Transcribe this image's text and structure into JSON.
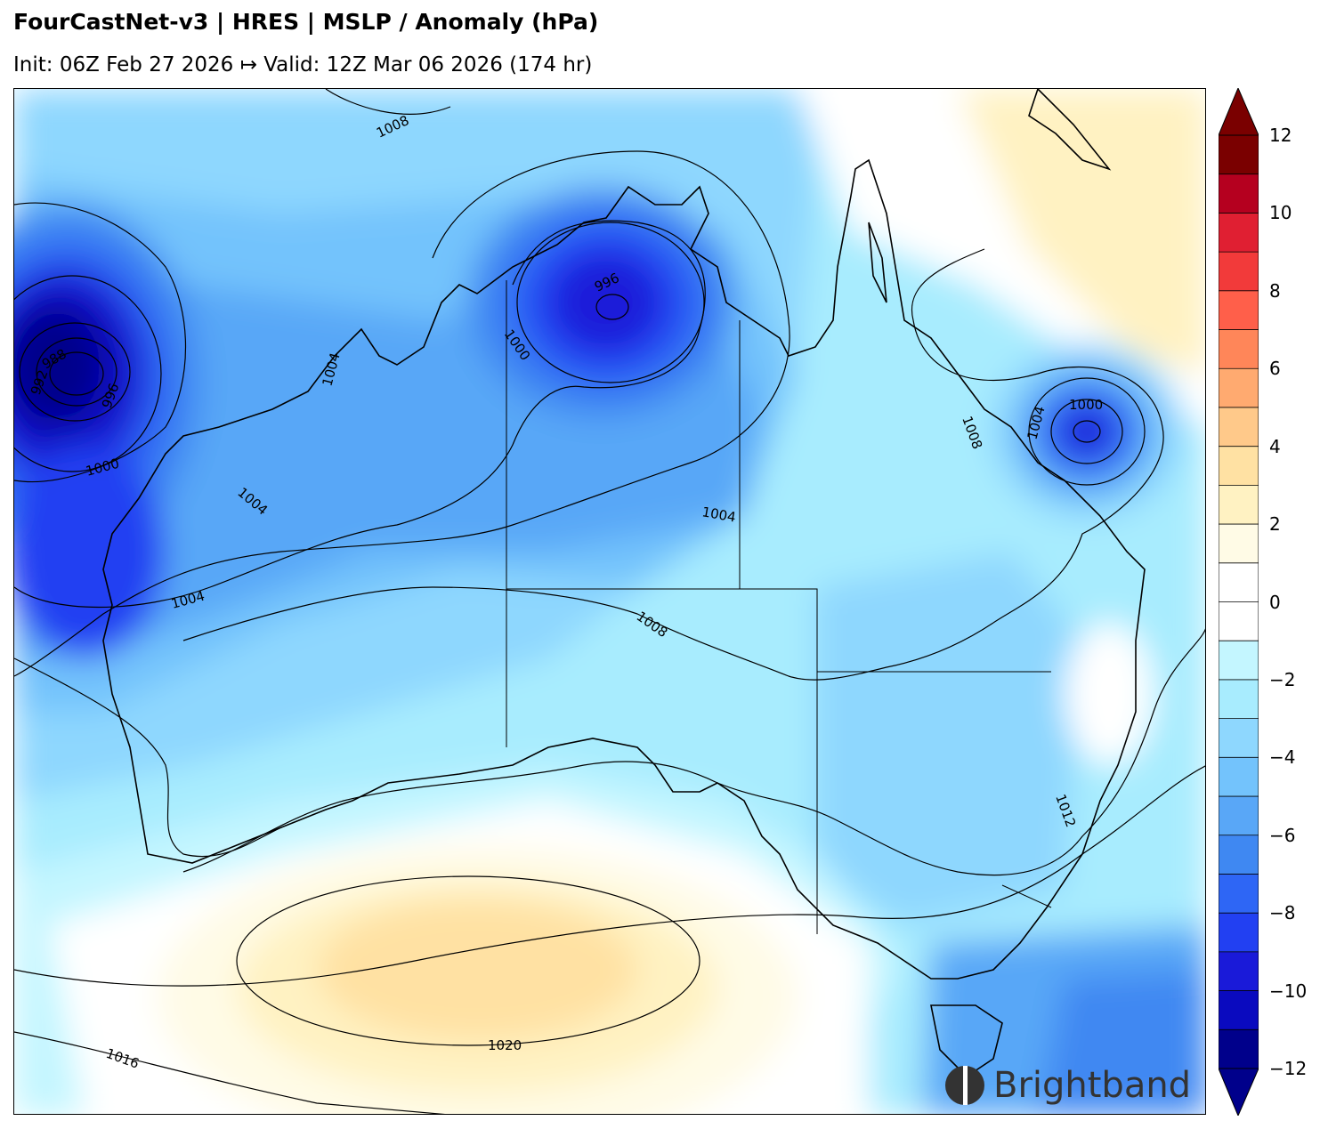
{
  "header": {
    "title": "FourCastNet-v3 | HRES | MSLP / Anomaly (hPa)",
    "subtitle": "Init: 06Z Feb 27 2026 ↦ Valid: 12Z Mar 06 2026 (174 hr)"
  },
  "map": {
    "field": "MSLP anomaly (filled) with MSLP isobars (contours)",
    "contour_labels": [
      "1008",
      "996",
      "1000",
      "1004",
      "1000",
      "992",
      "988",
      "996",
      "1000",
      "1004",
      "1004",
      "1004",
      "1008",
      "1004",
      "1000",
      "1008",
      "1012",
      "1016",
      "1020"
    ],
    "lows": [
      {
        "name": "west low",
        "center_pressure_label": "988"
      },
      {
        "name": "north low",
        "center_pressure_label": "996"
      },
      {
        "name": "east coast low",
        "center_pressure_label": "1000"
      }
    ],
    "highs": [
      {
        "name": "southern high",
        "center_pressure_label": "1020"
      }
    ]
  },
  "colorbar": {
    "min": -12,
    "max": 12,
    "step": 1,
    "tick_labels": [
      "12",
      "10",
      "8",
      "6",
      "4",
      "2",
      "0",
      "−2",
      "−4",
      "−6",
      "−8",
      "−10",
      "−12"
    ],
    "colors": [
      "#00008b",
      "#0a0abf",
      "#1a1ad9",
      "#2240f2",
      "#2e66f5",
      "#3f88f2",
      "#59a7f7",
      "#73c3fc",
      "#8ed7fe",
      "#a8ecfe",
      "#c4f6ff",
      "#ffffff",
      "#ffffff",
      "#fffbe6",
      "#fff2c2",
      "#ffe1a3",
      "#ffc98a",
      "#ffaa70",
      "#ff8659",
      "#ff5f4a",
      "#f23a3a",
      "#e01f32",
      "#b5001f",
      "#7a0000"
    ]
  },
  "brand": {
    "name": "Brightband"
  }
}
